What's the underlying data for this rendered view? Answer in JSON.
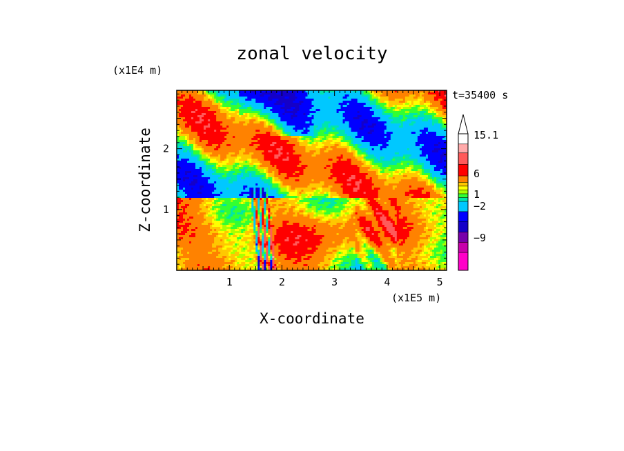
{
  "chart_data": {
    "type": "heatmap",
    "title": "zonal velocity",
    "xlabel": "X-coordinate",
    "ylabel": "Z-coordinate",
    "x_unit": "(x1E5 m)",
    "y_unit": "(x1E4 m)",
    "time_label": "t=35400 s",
    "xlim": [
      0,
      5.13
    ],
    "ylim": [
      0,
      2.96
    ],
    "x_ticks": [
      "1",
      "2",
      "3",
      "4",
      "5"
    ],
    "y_ticks": [
      "1",
      "2"
    ],
    "colorbar": {
      "labels": [
        "15.1",
        "6",
        "1",
        "-2",
        "-9"
      ],
      "levels": [
        -15,
        -12,
        -9,
        -6,
        -4,
        -2,
        -1,
        0,
        0.5,
        1,
        2,
        4,
        6,
        9,
        12,
        15.1
      ],
      "colors": [
        "#ff00c8",
        "#c800aa",
        "#7800aa",
        "#1400c8",
        "#0000ff",
        "#00c8ff",
        "#00e6aa",
        "#32ff32",
        "#aaff00",
        "#ffff00",
        "#ffc800",
        "#ff8200",
        "#ff0000",
        "#ff5a5a",
        "#ffaaaa",
        "#ffffff"
      ]
    }
  }
}
